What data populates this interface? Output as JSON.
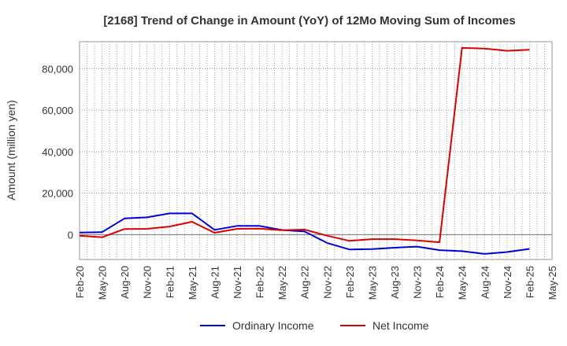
{
  "chart_data": {
    "type": "line",
    "title": "[2168]  Trend of Change in Amount (YoY) of 12Mo Moving Sum of Incomes",
    "xlabel": "",
    "ylabel": "Amount (million yen)",
    "ylim": [
      -12000,
      93000
    ],
    "yticks": [
      0,
      20000,
      40000,
      60000,
      80000
    ],
    "ytick_labels": [
      "0",
      "20,000",
      "40,000",
      "60,000",
      "80,000"
    ],
    "categories": [
      "Feb-20",
      "May-20",
      "Aug-20",
      "Nov-20",
      "Feb-21",
      "May-21",
      "Aug-21",
      "Nov-21",
      "Feb-22",
      "May-22",
      "Aug-22",
      "Nov-22",
      "Feb-23",
      "May-23",
      "Aug-23",
      "Nov-23",
      "Feb-24",
      "May-24",
      "Aug-24",
      "Nov-24",
      "Feb-25",
      "May-25"
    ],
    "grid": true,
    "legend_position": "bottom-center",
    "series": [
      {
        "name": "Ordinary Income",
        "color": "#0000dd",
        "values": [
          1000,
          1200,
          7800,
          8300,
          10200,
          10200,
          2300,
          4200,
          4200,
          2200,
          1500,
          -4000,
          -7200,
          -7000,
          -6300,
          -5800,
          -7500,
          -8000,
          -9300,
          -8400,
          -6900,
          null
        ]
      },
      {
        "name": "Net Income",
        "color": "#dd0000",
        "values": [
          -500,
          -1300,
          2700,
          2800,
          3900,
          6200,
          900,
          2800,
          2900,
          2100,
          2400,
          -500,
          -3000,
          -2200,
          -2200,
          -2800,
          -3700,
          90000,
          89700,
          88600,
          89100,
          null
        ]
      }
    ]
  }
}
